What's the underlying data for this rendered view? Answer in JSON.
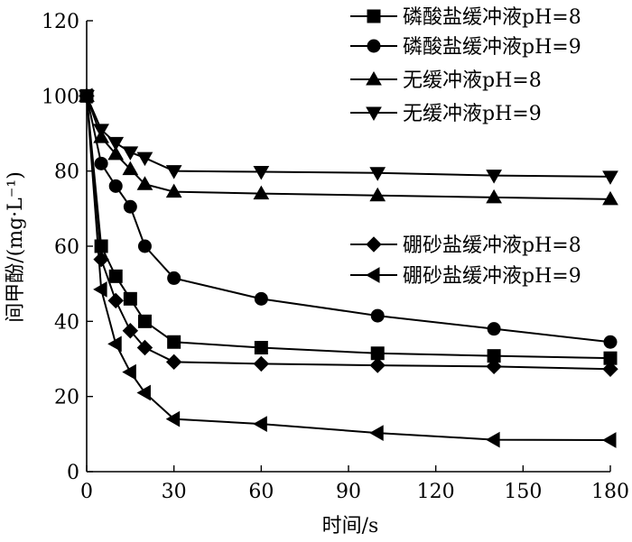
{
  "chart_data": {
    "type": "line",
    "title": "",
    "xlabel": "时间/s",
    "ylabel": "间甲酚/(mg·L⁻¹)",
    "xlim": [
      0,
      180
    ],
    "ylim": [
      0,
      120
    ],
    "xticks": [
      0,
      30,
      60,
      90,
      120,
      150,
      180
    ],
    "yticks": [
      0,
      20,
      40,
      60,
      80,
      100,
      120
    ],
    "grid": false,
    "legend_position": "top-right",
    "colors": {
      "line": "#000000",
      "background": "#ffffff"
    },
    "series": [
      {
        "name": "磷酸盐缓冲液pH=8",
        "marker": "square",
        "x": [
          0,
          5,
          10,
          15,
          20,
          30,
          60,
          100,
          140,
          180
        ],
        "y": [
          100,
          60,
          52,
          46,
          40,
          34.5,
          33,
          31.5,
          30.8,
          30.2
        ]
      },
      {
        "name": "磷酸盐缓冲液pH=9",
        "marker": "circle",
        "x": [
          0,
          5,
          10,
          15,
          20,
          30,
          60,
          100,
          140,
          180
        ],
        "y": [
          100,
          82,
          76,
          70.5,
          60,
          51.5,
          46,
          41.5,
          38,
          34.5
        ]
      },
      {
        "name": "无缓冲液pH=8",
        "marker": "triangle-up",
        "x": [
          0,
          5,
          10,
          15,
          20,
          30,
          60,
          100,
          140,
          180
        ],
        "y": [
          100,
          89,
          84.5,
          80.5,
          76.5,
          74.5,
          74,
          73.5,
          73,
          72.5
        ]
      },
      {
        "name": "无缓冲液pH=9",
        "marker": "triangle-down",
        "x": [
          0,
          5,
          10,
          15,
          20,
          30,
          60,
          100,
          140,
          180
        ],
        "y": [
          100,
          91,
          87.5,
          85,
          83.5,
          80,
          79.8,
          79.5,
          78.8,
          78.5
        ]
      },
      {
        "name": "硼砂盐缓冲液pH=8",
        "marker": "diamond",
        "x": [
          0,
          5,
          10,
          15,
          20,
          30,
          60,
          100,
          140,
          180
        ],
        "y": [
          100,
          56.5,
          45.5,
          37.5,
          33,
          29.2,
          28.7,
          28.3,
          28,
          27.3
        ]
      },
      {
        "name": "硼砂盐缓冲液pH=9",
        "marker": "triangle-left",
        "x": [
          0,
          5,
          10,
          15,
          20,
          30,
          60,
          100,
          140,
          180
        ],
        "y": [
          100,
          48.5,
          34,
          26.5,
          21,
          14,
          12.7,
          10.3,
          8.5,
          8.4
        ]
      }
    ]
  }
}
